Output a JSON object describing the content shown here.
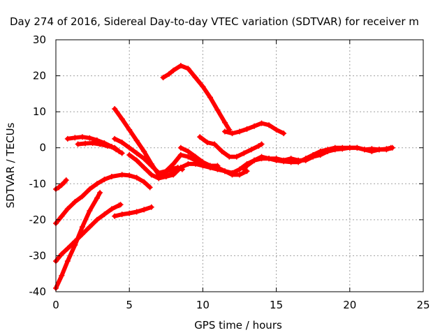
{
  "chart_data": {
    "type": "scatter",
    "title": "Day 274 of 2016, Sidereal Day-to-day VTEC variation (SDTVAR) for receiver m",
    "xlabel": "GPS time / hours",
    "ylabel": "SDTVAR / TECUs",
    "xlim": [
      0,
      25
    ],
    "ylim": [
      -40,
      30
    ],
    "xticks": [
      "0",
      "5",
      "10",
      "15",
      "20",
      "25"
    ],
    "yticks": [
      "-40",
      "-30",
      "-20",
      "-10",
      "0",
      "10",
      "20",
      "30"
    ],
    "grid": true,
    "legend": "none",
    "marker": "+",
    "color": "#ff0000",
    "series": [
      {
        "points": [
          [
            0.0,
            -11.5
          ],
          [
            0.2,
            -11.0
          ],
          [
            0.4,
            -10.3
          ],
          [
            0.6,
            -9.5
          ],
          [
            0.7,
            -9.0
          ]
        ]
      },
      {
        "points": [
          [
            0.0,
            -21.0
          ],
          [
            0.4,
            -19.0
          ],
          [
            0.8,
            -17.0
          ],
          [
            1.3,
            -15.0
          ],
          [
            1.8,
            -13.5
          ],
          [
            2.3,
            -11.5
          ],
          [
            2.8,
            -10.0
          ],
          [
            3.3,
            -8.8
          ],
          [
            3.8,
            -8.0
          ],
          [
            4.5,
            -7.5
          ],
          [
            5.0,
            -7.7
          ],
          [
            5.5,
            -8.3
          ],
          [
            6.0,
            -9.5
          ],
          [
            6.4,
            -11.0
          ]
        ]
      },
      {
        "points": [
          [
            0.0,
            -31.5
          ],
          [
            0.4,
            -29.5
          ],
          [
            0.8,
            -28.0
          ],
          [
            1.3,
            -26.0
          ],
          [
            1.8,
            -24.0
          ],
          [
            2.3,
            -22.0
          ],
          [
            2.8,
            -20.0
          ],
          [
            3.3,
            -18.5
          ],
          [
            3.8,
            -17.0
          ],
          [
            4.3,
            -16.0
          ],
          [
            4.4,
            -15.8
          ]
        ]
      },
      {
        "points": [
          [
            0.0,
            -39.0
          ],
          [
            0.4,
            -35.5
          ],
          [
            0.8,
            -31.5
          ],
          [
            1.3,
            -27.0
          ],
          [
            1.8,
            -22.0
          ],
          [
            2.3,
            -17.5
          ],
          [
            2.8,
            -14.0
          ],
          [
            3.0,
            -12.5
          ]
        ]
      },
      {
        "points": [
          [
            0.8,
            2.5
          ],
          [
            1.3,
            2.8
          ],
          [
            1.8,
            3.0
          ],
          [
            2.3,
            2.7
          ],
          [
            2.8,
            2.1
          ],
          [
            3.3,
            1.3
          ],
          [
            3.8,
            0.3
          ],
          [
            4.1,
            -0.5
          ]
        ]
      },
      {
        "points": [
          [
            1.5,
            1.0
          ],
          [
            2.0,
            1.2
          ],
          [
            2.5,
            1.3
          ],
          [
            3.0,
            1.0
          ],
          [
            3.5,
            0.5
          ],
          [
            4.0,
            0.0
          ],
          [
            4.3,
            -1.0
          ],
          [
            4.5,
            -1.5
          ]
        ]
      },
      {
        "points": [
          [
            4.0,
            10.8
          ],
          [
            4.5,
            8.0
          ],
          [
            5.0,
            5.0
          ],
          [
            5.5,
            2.0
          ],
          [
            6.0,
            -1.0
          ],
          [
            6.5,
            -4.5
          ],
          [
            7.0,
            -7.5
          ],
          [
            7.5,
            -8.0
          ],
          [
            8.0,
            -7.5
          ],
          [
            8.5,
            -5.5
          ]
        ]
      },
      {
        "points": [
          [
            4.0,
            2.5
          ],
          [
            4.5,
            1.5
          ],
          [
            5.0,
            0.0
          ],
          [
            5.5,
            -1.5
          ],
          [
            6.0,
            -3.0
          ],
          [
            6.5,
            -5.0
          ],
          [
            7.0,
            -7.0
          ],
          [
            7.5,
            -6.5
          ],
          [
            8.0,
            -4.5
          ],
          [
            8.5,
            -2.0
          ],
          [
            9.0,
            -2.5
          ],
          [
            9.5,
            -3.5
          ],
          [
            10.0,
            -4.5
          ],
          [
            10.5,
            -5.0
          ],
          [
            11.0,
            -5.0
          ]
        ]
      },
      {
        "points": [
          [
            4.0,
            -19.0
          ],
          [
            4.5,
            -18.5
          ],
          [
            5.0,
            -18.2
          ],
          [
            5.5,
            -17.8
          ],
          [
            6.0,
            -17.2
          ],
          [
            6.5,
            -16.5
          ]
        ]
      },
      {
        "points": [
          [
            5.0,
            -2.0
          ],
          [
            5.5,
            -3.5
          ],
          [
            6.0,
            -5.5
          ],
          [
            6.5,
            -7.5
          ],
          [
            7.0,
            -8.5
          ],
          [
            7.5,
            -8.0
          ],
          [
            8.0,
            -7.0
          ],
          [
            8.5,
            -5.5
          ],
          [
            9.0,
            -4.5
          ],
          [
            9.5,
            -4.5
          ],
          [
            10.0,
            -5.0
          ],
          [
            10.5,
            -5.5
          ],
          [
            11.0,
            -6.0
          ],
          [
            11.5,
            -6.5
          ],
          [
            12.0,
            -7.0
          ]
        ]
      },
      {
        "points": [
          [
            7.2,
            -7.5
          ],
          [
            7.6,
            -6.5
          ],
          [
            8.0,
            -5.8
          ],
          [
            8.3,
            -5.5
          ],
          [
            8.6,
            -6.0
          ]
        ]
      },
      {
        "points": [
          [
            7.3,
            19.5
          ],
          [
            7.7,
            20.5
          ],
          [
            8.0,
            21.5
          ],
          [
            8.5,
            22.8
          ],
          [
            9.0,
            22.0
          ],
          [
            9.5,
            19.5
          ],
          [
            10.0,
            17.0
          ],
          [
            10.5,
            14.0
          ],
          [
            11.0,
            10.5
          ],
          [
            11.5,
            7.0
          ],
          [
            11.8,
            5.0
          ]
        ]
      },
      {
        "points": [
          [
            8.5,
            0.0
          ],
          [
            9.0,
            -1.0
          ],
          [
            9.5,
            -2.5
          ],
          [
            10.0,
            -4.0
          ],
          [
            10.5,
            -5.0
          ],
          [
            11.0,
            -5.5
          ],
          [
            11.5,
            -6.5
          ],
          [
            12.0,
            -7.5
          ],
          [
            12.5,
            -7.5
          ],
          [
            13.0,
            -6.5
          ]
        ]
      },
      {
        "points": [
          [
            9.8,
            3.0
          ],
          [
            10.3,
            1.5
          ],
          [
            10.8,
            1.0
          ],
          [
            11.3,
            -1.0
          ],
          [
            11.8,
            -2.5
          ],
          [
            12.3,
            -2.5
          ],
          [
            12.8,
            -1.5
          ],
          [
            13.3,
            -0.5
          ],
          [
            13.8,
            0.5
          ],
          [
            14.0,
            1.0
          ]
        ]
      },
      {
        "points": [
          [
            11.5,
            4.5
          ],
          [
            12.0,
            4.0
          ],
          [
            12.5,
            4.5
          ],
          [
            13.0,
            5.2
          ],
          [
            13.5,
            6.0
          ],
          [
            14.0,
            6.8
          ],
          [
            14.5,
            6.3
          ],
          [
            15.0,
            5.0
          ],
          [
            15.5,
            4.0
          ]
        ]
      },
      {
        "points": [
          [
            12.8,
            -6.0
          ],
          [
            13.0,
            -5.0
          ],
          [
            13.5,
            -3.5
          ],
          [
            14.0,
            -2.5
          ],
          [
            14.5,
            -3.0
          ],
          [
            15.0,
            -3.0
          ],
          [
            15.5,
            -3.5
          ],
          [
            16.0,
            -3.0
          ],
          [
            16.5,
            -3.5
          ],
          [
            17.0,
            -3.5
          ],
          [
            17.5,
            -2.5
          ],
          [
            18.0,
            -2.0
          ],
          [
            18.5,
            -1.0
          ],
          [
            19.0,
            -0.5
          ],
          [
            19.5,
            -0.3
          ],
          [
            20.0,
            0.0
          ],
          [
            20.5,
            0.0
          ],
          [
            21.0,
            -0.5
          ],
          [
            21.5,
            -0.3
          ],
          [
            22.0,
            -0.5
          ],
          [
            22.5,
            -0.3
          ],
          [
            22.8,
            0.0
          ]
        ]
      },
      {
        "points": [
          [
            12.0,
            -7.0
          ],
          [
            12.5,
            -6.0
          ],
          [
            13.0,
            -4.5
          ],
          [
            13.5,
            -3.5
          ],
          [
            14.0,
            -3.0
          ],
          [
            14.5,
            -3.0
          ],
          [
            15.0,
            -3.5
          ],
          [
            15.5,
            -3.8
          ],
          [
            16.0,
            -4.0
          ],
          [
            16.5,
            -4.0
          ],
          [
            17.0,
            -3.0
          ],
          [
            17.5,
            -2.0
          ],
          [
            18.0,
            -1.0
          ],
          [
            18.5,
            -0.5
          ],
          [
            19.0,
            0.0
          ],
          [
            19.5,
            0.0
          ],
          [
            20.0,
            0.0
          ],
          [
            20.5,
            0.0
          ],
          [
            21.0,
            -0.5
          ],
          [
            21.5,
            -1.0
          ],
          [
            22.0,
            -0.5
          ],
          [
            22.5,
            -0.5
          ],
          [
            22.9,
            0.0
          ]
        ]
      }
    ]
  }
}
